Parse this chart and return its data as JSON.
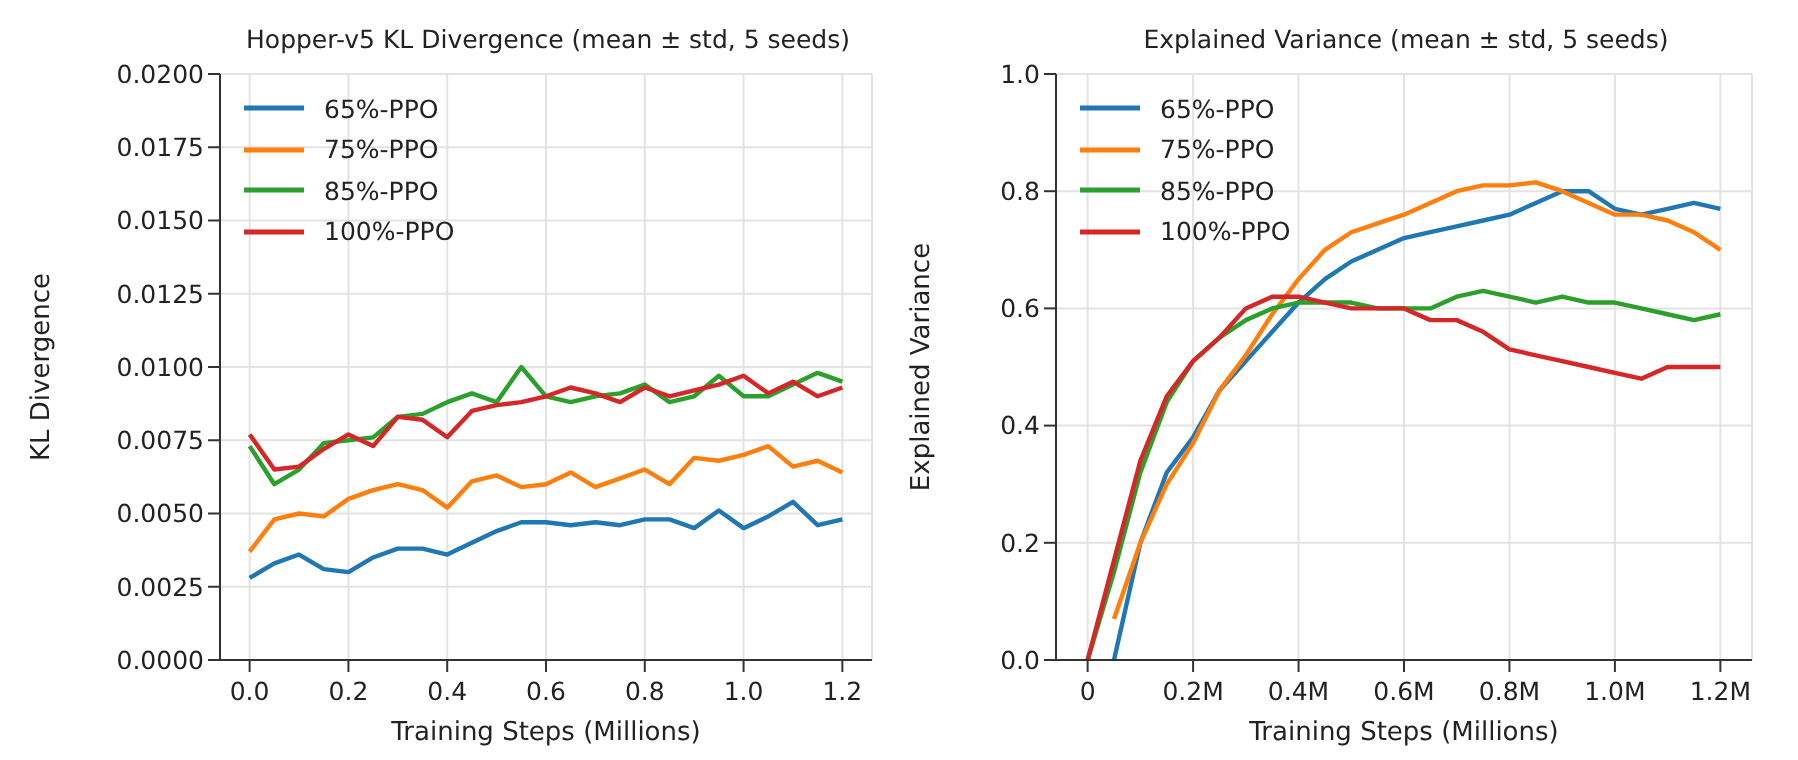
{
  "chart_data": [
    {
      "type": "line",
      "title": "Hopper-v5 KL Divergence (mean ± std, 5 seeds)",
      "xlabel": "Training Steps (Millions)",
      "ylabel": "KL Divergence",
      "x": [
        0,
        0.05,
        0.1,
        0.15,
        0.2,
        0.25,
        0.3,
        0.35,
        0.4,
        0.45,
        0.5,
        0.55,
        0.6,
        0.65,
        0.7,
        0.75,
        0.8,
        0.85,
        0.9,
        0.95,
        1.0,
        1.05,
        1.1,
        1.15,
        1.2
      ],
      "series": [
        {
          "name": "65%-PPO",
          "color": "#1f77b4",
          "values": [
            0.0028,
            0.0033,
            0.0036,
            0.0031,
            0.003,
            0.0035,
            0.0038,
            0.0038,
            0.0036,
            0.004,
            0.0044,
            0.0047,
            0.0047,
            0.0046,
            0.0047,
            0.0046,
            0.0048,
            0.0048,
            0.0045,
            0.0051,
            0.0045,
            0.0049,
            0.0054,
            0.0046,
            0.0048
          ]
        },
        {
          "name": "75%-PPO",
          "color": "#ff7f0e",
          "values": [
            0.0037,
            0.0048,
            0.005,
            0.0049,
            0.0055,
            0.0058,
            0.006,
            0.0058,
            0.0052,
            0.0061,
            0.0063,
            0.0059,
            0.006,
            0.0064,
            0.0059,
            0.0062,
            0.0065,
            0.006,
            0.0069,
            0.0068,
            0.007,
            0.0073,
            0.0066,
            0.0068,
            0.0064
          ]
        },
        {
          "name": "85%-PPO",
          "color": "#2ca02c",
          "values": [
            0.0073,
            0.006,
            0.0065,
            0.0074,
            0.0075,
            0.0076,
            0.0083,
            0.0084,
            0.0088,
            0.0091,
            0.0088,
            0.01,
            0.009,
            0.0088,
            0.009,
            0.0091,
            0.0094,
            0.0088,
            0.009,
            0.0097,
            0.009,
            0.009,
            0.0094,
            0.0098,
            0.0095
          ]
        },
        {
          "name": "100%-PPO",
          "color": "#d62728",
          "values": [
            0.0077,
            0.0065,
            0.0066,
            0.0072,
            0.0077,
            0.0073,
            0.0083,
            0.0082,
            0.0076,
            0.0085,
            0.0087,
            0.0088,
            0.009,
            0.0093,
            0.0091,
            0.0088,
            0.0093,
            0.009,
            0.0092,
            0.0094,
            0.0097,
            0.0091,
            0.0095,
            0.009,
            0.0093
          ]
        }
      ],
      "xlim": [
        -0.06,
        1.26
      ],
      "xticks": [
        {
          "value": 0,
          "label": "0.0"
        },
        0.2,
        0.4,
        0.6,
        0.8,
        {
          "value": 1,
          "label": "1.0"
        },
        1.2
      ],
      "ylim": [
        0,
        0.02
      ],
      "yticks": [
        {
          "value": 0,
          "label": "0.0000"
        },
        0.0025,
        {
          "value": 0.005,
          "label": "0.0050"
        },
        0.0075,
        {
          "value": 0.01,
          "label": "0.0100"
        },
        0.0125,
        {
          "value": 0.015,
          "label": "0.0150"
        },
        0.0175,
        {
          "value": 0.02,
          "label": "0.0200"
        }
      ],
      "grid": true,
      "legend": "top left",
      "line_style": "solid",
      "marker": "none"
    },
    {
      "type": "line",
      "title": "Explained Variance (mean ± std, 5 seeds)",
      "xlabel": "Training Steps (Millions)",
      "ylabel": "Explained Variance",
      "x": [
        0,
        0.05,
        0.1,
        0.15,
        0.2,
        0.25,
        0.3,
        0.35,
        0.4,
        0.45,
        0.5,
        0.55,
        0.6,
        0.65,
        0.7,
        0.75,
        0.8,
        0.85,
        0.9,
        0.95,
        1.0,
        1.05,
        1.1,
        1.15,
        1.2
      ],
      "series": [
        {
          "name": "65%-PPO",
          "color": "#1f77b4",
          "values": [
            null,
            0,
            0.2,
            0.32,
            0.38,
            0.46,
            0.51,
            0.56,
            0.61,
            0.65,
            0.68,
            0.7,
            0.72,
            0.73,
            0.74,
            0.75,
            0.76,
            0.78,
            0.8,
            0.8,
            0.77,
            0.76,
            0.77,
            0.78,
            0.77
          ]
        },
        {
          "name": "75%-PPO",
          "color": "#ff7f0e",
          "values": [
            null,
            0.07,
            0.2,
            0.3,
            0.37,
            0.46,
            0.52,
            0.59,
            0.65,
            0.7,
            0.73,
            0.745,
            0.76,
            0.78,
            0.8,
            0.81,
            0.81,
            0.815,
            0.8,
            0.78,
            0.76,
            0.76,
            0.75,
            0.73,
            0.7
          ]
        },
        {
          "name": "85%-PPO",
          "color": "#2ca02c",
          "values": [
            0,
            0.15,
            0.32,
            0.44,
            0.51,
            0.55,
            0.58,
            0.6,
            0.61,
            0.61,
            0.61,
            0.6,
            0.6,
            0.6,
            0.62,
            0.63,
            0.62,
            0.61,
            0.62,
            0.61,
            0.61,
            0.6,
            0.59,
            0.58,
            0.59
          ]
        },
        {
          "name": "100%-PPO",
          "color": "#d62728",
          "values": [
            0,
            0.17,
            0.34,
            0.45,
            0.51,
            0.55,
            0.6,
            0.62,
            0.62,
            0.61,
            0.6,
            0.6,
            0.6,
            0.58,
            0.58,
            0.56,
            0.53,
            0.52,
            0.51,
            0.5,
            0.49,
            0.48,
            0.5,
            0.5,
            0.5
          ]
        }
      ],
      "xlim": [
        -0.06,
        1.26
      ],
      "xticks": [
        0,
        {
          "value": 0.2,
          "label": "0.2M"
        },
        {
          "value": 0.4,
          "label": "0.4M"
        },
        {
          "value": 0.6,
          "label": "0.6M"
        },
        {
          "value": 0.8,
          "label": "0.8M"
        },
        {
          "value": 1,
          "label": "1.0M"
        },
        {
          "value": 1.2,
          "label": "1.2M"
        }
      ],
      "ylim": [
        0,
        1
      ],
      "yticks": [
        {
          "value": 0,
          "label": "0.0"
        },
        0.2,
        0.4,
        0.6,
        0.8,
        {
          "value": 1,
          "label": "1.0"
        }
      ],
      "grid": true,
      "legend": "top left",
      "line_style": "solid",
      "marker": "none"
    }
  ]
}
